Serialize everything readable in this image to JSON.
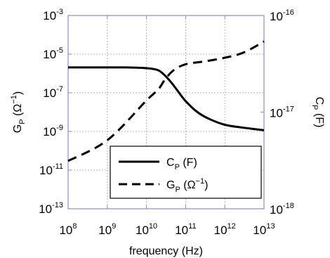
{
  "chart_data": {
    "type": "line",
    "title": "",
    "xlabel": "frequency (Hz)",
    "ylabel_left": {
      "base": "G",
      "sub": "P",
      "unit_open": " (Ω",
      "unit_sup": "−1",
      "unit_close": ")"
    },
    "ylabel_right": {
      "base": "C",
      "sub": "P",
      "unit": " (F)"
    },
    "x_scale": "log",
    "xlim": [
      100000000.0,
      10000000000000.0
    ],
    "x_ticks": [
      {
        "value": 100000000.0,
        "base": "10",
        "exp": "8"
      },
      {
        "value": 1000000000.0,
        "base": "10",
        "exp": "9"
      },
      {
        "value": 10000000000.0,
        "base": "10",
        "exp": "10"
      },
      {
        "value": 100000000000.0,
        "base": "10",
        "exp": "11"
      },
      {
        "value": 1000000000000.0,
        "base": "10",
        "exp": "12"
      },
      {
        "value": 10000000000000.0,
        "base": "10",
        "exp": "13"
      }
    ],
    "y_left_scale": "log",
    "y_left_lim": [
      1e-13,
      0.001
    ],
    "y_left_ticks": [
      {
        "value": 1e-13,
        "base": "10",
        "exp": "-13"
      },
      {
        "value": 1e-11,
        "base": "10",
        "exp": "-11"
      },
      {
        "value": 1e-09,
        "base": "10",
        "exp": "-9"
      },
      {
        "value": 1e-07,
        "base": "10",
        "exp": "-7"
      },
      {
        "value": 1e-05,
        "base": "10",
        "exp": "-5"
      },
      {
        "value": 0.001,
        "base": "10",
        "exp": "-3"
      }
    ],
    "y_right_scale": "log",
    "y_right_lim": [
      1e-18,
      1e-16
    ],
    "y_right_ticks": [
      {
        "value": 1e-18,
        "base": "10",
        "exp": "-18"
      },
      {
        "value": 1e-17,
        "base": "10",
        "exp": "-17"
      },
      {
        "value": 1e-16,
        "base": "10",
        "exp": "-16"
      }
    ],
    "grid": true,
    "grid_color": "#9a9ad8",
    "axis_color": "#8a8ad6",
    "legend_position": "lower-left",
    "series": [
      {
        "name": {
          "base": "C",
          "sub": "P",
          "rest": " (F)"
        },
        "axis": "right",
        "style": "solid",
        "color": "#000000",
        "x": [
          100000000.0,
          1000000000.0,
          3000000000.0,
          10000000000.0,
          18000000000.0,
          25000000000.0,
          40000000000.0,
          60000000000.0,
          100000000000.0,
          200000000000.0,
          400000000000.0,
          1000000000000.0,
          3000000000000.0,
          10000000000000.0
        ],
        "y": [
          2.9e-17,
          2.9e-17,
          2.9e-17,
          2.85e-17,
          2.75e-17,
          2.55e-17,
          2.1e-17,
          1.7e-17,
          1.3e-17,
          1e-17,
          8.5e-18,
          7.4e-18,
          6.9e-18,
          6.5e-18
        ]
      },
      {
        "name": {
          "base": "G",
          "sub": "P",
          "rest_open": " (Ω",
          "rest_sup": "−1",
          "rest_close": ")"
        },
        "axis": "left",
        "style": "dashed",
        "color": "#000000",
        "x": [
          100000000.0,
          1000000000.0,
          10000000000.0,
          20000000000.0,
          30000000000.0,
          50000000000.0,
          100000000000.0,
          300000000000.0,
          1000000000000.0,
          3000000000000.0,
          10000000000000.0
        ],
        "y": [
          3e-11,
          3.5e-10,
          4e-08,
          1.5e-07,
          5e-07,
          1.5e-06,
          3e-06,
          4.2e-06,
          6.5e-06,
          1.2e-05,
          4.5e-05
        ]
      }
    ]
  }
}
